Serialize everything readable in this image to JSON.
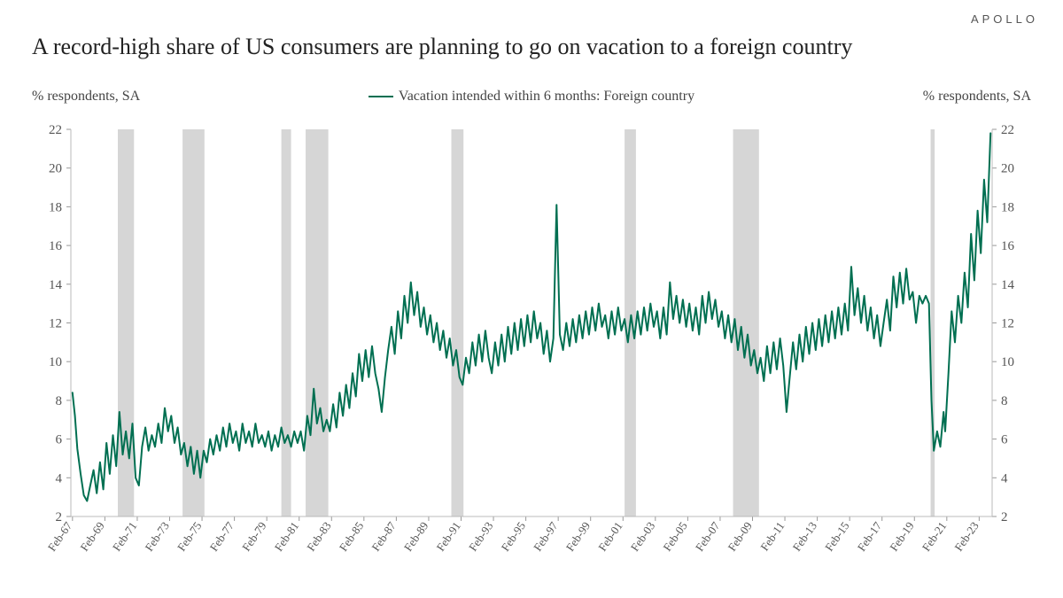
{
  "brand": "APOLLO",
  "title": "A record-high share of US consumers are planning to go on vacation to a foreign country",
  "axis_title_left": "% respondents, SA",
  "axis_title_right": "% respondents, SA",
  "legend_label": "Vacation intended within 6 months: Foreign country",
  "chart": {
    "type": "line",
    "line_color": "#006f51",
    "line_width": 2,
    "background_color": "#ffffff",
    "recession_band_color": "#d6d6d6",
    "axis_text_color": "#555555",
    "tick_fontsize": 15,
    "xtick_fontsize": 13,
    "x_start_year": 1967,
    "x_end_year": 2023.9,
    "ylim": [
      2,
      22
    ],
    "ytick_step": 2,
    "yticks": [
      2,
      4,
      6,
      8,
      10,
      12,
      14,
      16,
      18,
      20,
      22
    ],
    "x_tick_years": [
      1967,
      1969,
      1971,
      1973,
      1975,
      1977,
      1979,
      1981,
      1983,
      1985,
      1987,
      1989,
      1991,
      1993,
      1995,
      1997,
      1999,
      2001,
      2003,
      2005,
      2007,
      2009,
      2011,
      2013,
      2015,
      2017,
      2019,
      2021,
      2023
    ],
    "x_tick_prefix": "Feb-",
    "recession_bands": [
      [
        1969.9,
        1970.9
      ],
      [
        1973.9,
        1975.25
      ],
      [
        1980.0,
        1980.6
      ],
      [
        1981.5,
        1982.9
      ],
      [
        1990.5,
        1991.25
      ],
      [
        2001.2,
        2001.9
      ],
      [
        2007.9,
        2009.5
      ],
      [
        2020.1,
        2020.35
      ]
    ],
    "series": [
      [
        1967.1,
        8.4
      ],
      [
        1967.25,
        7.2
      ],
      [
        1967.4,
        5.5
      ],
      [
        1967.6,
        4.2
      ],
      [
        1967.8,
        3.1
      ],
      [
        1968.0,
        2.8
      ],
      [
        1968.2,
        3.6
      ],
      [
        1968.4,
        4.4
      ],
      [
        1968.6,
        3.2
      ],
      [
        1968.8,
        4.8
      ],
      [
        1969.0,
        3.4
      ],
      [
        1969.2,
        5.8
      ],
      [
        1969.4,
        4.2
      ],
      [
        1969.6,
        6.2
      ],
      [
        1969.8,
        4.6
      ],
      [
        1970.0,
        7.4
      ],
      [
        1970.2,
        5.2
      ],
      [
        1970.4,
        6.4
      ],
      [
        1970.6,
        5.0
      ],
      [
        1970.8,
        6.8
      ],
      [
        1971.0,
        4.0
      ],
      [
        1971.2,
        3.6
      ],
      [
        1971.4,
        5.6
      ],
      [
        1971.6,
        6.6
      ],
      [
        1971.8,
        5.4
      ],
      [
        1972.0,
        6.2
      ],
      [
        1972.2,
        5.6
      ],
      [
        1972.4,
        6.8
      ],
      [
        1972.6,
        5.8
      ],
      [
        1972.8,
        7.6
      ],
      [
        1973.0,
        6.4
      ],
      [
        1973.2,
        7.2
      ],
      [
        1973.4,
        5.8
      ],
      [
        1973.6,
        6.6
      ],
      [
        1973.8,
        5.2
      ],
      [
        1974.0,
        5.8
      ],
      [
        1974.2,
        4.6
      ],
      [
        1974.4,
        5.6
      ],
      [
        1974.6,
        4.2
      ],
      [
        1974.8,
        5.4
      ],
      [
        1975.0,
        4.0
      ],
      [
        1975.2,
        5.4
      ],
      [
        1975.4,
        4.8
      ],
      [
        1975.6,
        6.0
      ],
      [
        1975.8,
        5.2
      ],
      [
        1976.0,
        6.2
      ],
      [
        1976.2,
        5.4
      ],
      [
        1976.4,
        6.6
      ],
      [
        1976.6,
        5.6
      ],
      [
        1976.8,
        6.8
      ],
      [
        1977.0,
        5.8
      ],
      [
        1977.2,
        6.4
      ],
      [
        1977.4,
        5.4
      ],
      [
        1977.6,
        6.8
      ],
      [
        1977.8,
        5.8
      ],
      [
        1978.0,
        6.4
      ],
      [
        1978.2,
        5.6
      ],
      [
        1978.4,
        6.8
      ],
      [
        1978.6,
        5.8
      ],
      [
        1978.8,
        6.2
      ],
      [
        1979.0,
        5.6
      ],
      [
        1979.2,
        6.4
      ],
      [
        1979.4,
        5.4
      ],
      [
        1979.6,
        6.2
      ],
      [
        1979.8,
        5.6
      ],
      [
        1980.0,
        6.6
      ],
      [
        1980.2,
        5.8
      ],
      [
        1980.4,
        6.2
      ],
      [
        1980.6,
        5.6
      ],
      [
        1980.8,
        6.4
      ],
      [
        1981.0,
        5.8
      ],
      [
        1981.2,
        6.4
      ],
      [
        1981.4,
        5.4
      ],
      [
        1981.6,
        7.2
      ],
      [
        1981.8,
        6.2
      ],
      [
        1982.0,
        8.6
      ],
      [
        1982.2,
        6.8
      ],
      [
        1982.4,
        7.6
      ],
      [
        1982.6,
        6.4
      ],
      [
        1982.8,
        7.0
      ],
      [
        1983.0,
        6.4
      ],
      [
        1983.2,
        7.8
      ],
      [
        1983.4,
        6.6
      ],
      [
        1983.6,
        8.4
      ],
      [
        1983.8,
        7.2
      ],
      [
        1984.0,
        8.8
      ],
      [
        1984.2,
        7.6
      ],
      [
        1984.4,
        9.4
      ],
      [
        1984.6,
        8.2
      ],
      [
        1984.8,
        10.4
      ],
      [
        1985.0,
        9.0
      ],
      [
        1985.2,
        10.6
      ],
      [
        1985.4,
        9.2
      ],
      [
        1985.6,
        10.8
      ],
      [
        1985.8,
        9.4
      ],
      [
        1986.0,
        8.6
      ],
      [
        1986.2,
        7.4
      ],
      [
        1986.4,
        9.2
      ],
      [
        1986.6,
        10.6
      ],
      [
        1986.8,
        11.8
      ],
      [
        1987.0,
        10.4
      ],
      [
        1987.2,
        12.6
      ],
      [
        1987.4,
        11.2
      ],
      [
        1987.6,
        13.4
      ],
      [
        1987.8,
        12.0
      ],
      [
        1988.0,
        14.1
      ],
      [
        1988.2,
        12.4
      ],
      [
        1988.4,
        13.6
      ],
      [
        1988.6,
        11.8
      ],
      [
        1988.8,
        12.8
      ],
      [
        1989.0,
        11.4
      ],
      [
        1989.2,
        12.4
      ],
      [
        1989.4,
        11.0
      ],
      [
        1989.6,
        12.0
      ],
      [
        1989.8,
        10.6
      ],
      [
        1990.0,
        11.6
      ],
      [
        1990.2,
        10.2
      ],
      [
        1990.4,
        11.2
      ],
      [
        1990.6,
        9.8
      ],
      [
        1990.8,
        10.6
      ],
      [
        1991.0,
        9.2
      ],
      [
        1991.2,
        8.8
      ],
      [
        1991.4,
        10.2
      ],
      [
        1991.6,
        9.4
      ],
      [
        1991.8,
        11.0
      ],
      [
        1992.0,
        9.8
      ],
      [
        1992.2,
        11.4
      ],
      [
        1992.4,
        10.0
      ],
      [
        1992.6,
        11.6
      ],
      [
        1992.8,
        10.2
      ],
      [
        1993.0,
        9.4
      ],
      [
        1993.2,
        11.0
      ],
      [
        1993.4,
        9.8
      ],
      [
        1993.6,
        11.4
      ],
      [
        1993.8,
        10.0
      ],
      [
        1994.0,
        11.8
      ],
      [
        1994.2,
        10.4
      ],
      [
        1994.4,
        12.0
      ],
      [
        1994.6,
        10.6
      ],
      [
        1994.8,
        12.2
      ],
      [
        1995.0,
        10.8
      ],
      [
        1995.2,
        12.4
      ],
      [
        1995.4,
        11.0
      ],
      [
        1995.6,
        12.6
      ],
      [
        1995.8,
        11.2
      ],
      [
        1996.0,
        12.0
      ],
      [
        1996.2,
        10.4
      ],
      [
        1996.4,
        11.6
      ],
      [
        1996.6,
        10.0
      ],
      [
        1996.8,
        11.2
      ],
      [
        1997.0,
        18.1
      ],
      [
        1997.2,
        11.4
      ],
      [
        1997.4,
        10.6
      ],
      [
        1997.6,
        12.0
      ],
      [
        1997.8,
        10.8
      ],
      [
        1998.0,
        12.2
      ],
      [
        1998.2,
        11.0
      ],
      [
        1998.4,
        12.4
      ],
      [
        1998.6,
        11.2
      ],
      [
        1998.8,
        12.6
      ],
      [
        1999.0,
        11.4
      ],
      [
        1999.2,
        12.8
      ],
      [
        1999.4,
        11.6
      ],
      [
        1999.6,
        13.0
      ],
      [
        1999.8,
        11.8
      ],
      [
        2000.0,
        12.4
      ],
      [
        2000.2,
        11.2
      ],
      [
        2000.4,
        12.6
      ],
      [
        2000.6,
        11.4
      ],
      [
        2000.8,
        12.8
      ],
      [
        2001.0,
        11.6
      ],
      [
        2001.2,
        12.2
      ],
      [
        2001.4,
        11.0
      ],
      [
        2001.6,
        12.4
      ],
      [
        2001.8,
        11.2
      ],
      [
        2002.0,
        12.6
      ],
      [
        2002.2,
        11.4
      ],
      [
        2002.4,
        12.8
      ],
      [
        2002.6,
        11.6
      ],
      [
        2002.8,
        13.0
      ],
      [
        2003.0,
        11.8
      ],
      [
        2003.2,
        12.6
      ],
      [
        2003.4,
        11.2
      ],
      [
        2003.6,
        12.8
      ],
      [
        2003.8,
        11.4
      ],
      [
        2004.0,
        14.1
      ],
      [
        2004.2,
        12.2
      ],
      [
        2004.4,
        13.4
      ],
      [
        2004.6,
        12.0
      ],
      [
        2004.8,
        13.2
      ],
      [
        2005.0,
        11.8
      ],
      [
        2005.2,
        13.0
      ],
      [
        2005.4,
        11.6
      ],
      [
        2005.6,
        12.8
      ],
      [
        2005.8,
        11.4
      ],
      [
        2006.0,
        13.4
      ],
      [
        2006.2,
        12.0
      ],
      [
        2006.4,
        13.6
      ],
      [
        2006.6,
        12.2
      ],
      [
        2006.8,
        13.2
      ],
      [
        2007.0,
        11.8
      ],
      [
        2007.2,
        12.6
      ],
      [
        2007.4,
        11.2
      ],
      [
        2007.6,
        12.4
      ],
      [
        2007.8,
        11.0
      ],
      [
        2008.0,
        12.2
      ],
      [
        2008.2,
        10.6
      ],
      [
        2008.4,
        11.8
      ],
      [
        2008.6,
        10.2
      ],
      [
        2008.8,
        11.4
      ],
      [
        2009.0,
        9.8
      ],
      [
        2009.2,
        10.6
      ],
      [
        2009.4,
        9.4
      ],
      [
        2009.6,
        10.2
      ],
      [
        2009.8,
        9.0
      ],
      [
        2010.0,
        10.8
      ],
      [
        2010.2,
        9.4
      ],
      [
        2010.4,
        11.0
      ],
      [
        2010.6,
        9.6
      ],
      [
        2010.8,
        11.2
      ],
      [
        2011.0,
        9.8
      ],
      [
        2011.2,
        7.4
      ],
      [
        2011.4,
        9.2
      ],
      [
        2011.6,
        11.0
      ],
      [
        2011.8,
        9.6
      ],
      [
        2012.0,
        11.4
      ],
      [
        2012.2,
        10.0
      ],
      [
        2012.4,
        11.8
      ],
      [
        2012.6,
        10.4
      ],
      [
        2012.8,
        12.0
      ],
      [
        2013.0,
        10.6
      ],
      [
        2013.2,
        12.2
      ],
      [
        2013.4,
        10.8
      ],
      [
        2013.6,
        12.4
      ],
      [
        2013.8,
        11.0
      ],
      [
        2014.0,
        12.6
      ],
      [
        2014.2,
        11.2
      ],
      [
        2014.4,
        12.8
      ],
      [
        2014.6,
        11.4
      ],
      [
        2014.8,
        13.0
      ],
      [
        2015.0,
        11.6
      ],
      [
        2015.2,
        14.9
      ],
      [
        2015.4,
        12.4
      ],
      [
        2015.6,
        13.8
      ],
      [
        2015.8,
        12.0
      ],
      [
        2016.0,
        13.4
      ],
      [
        2016.2,
        11.6
      ],
      [
        2016.4,
        12.8
      ],
      [
        2016.6,
        11.2
      ],
      [
        2016.8,
        12.4
      ],
      [
        2017.0,
        10.8
      ],
      [
        2017.2,
        12.0
      ],
      [
        2017.4,
        13.2
      ],
      [
        2017.6,
        11.6
      ],
      [
        2017.8,
        14.4
      ],
      [
        2018.0,
        12.8
      ],
      [
        2018.2,
        14.6
      ],
      [
        2018.4,
        13.0
      ],
      [
        2018.6,
        14.8
      ],
      [
        2018.8,
        13.2
      ],
      [
        2019.0,
        13.6
      ],
      [
        2019.2,
        12.0
      ],
      [
        2019.4,
        13.4
      ],
      [
        2019.6,
        13.0
      ],
      [
        2019.8,
        13.4
      ],
      [
        2020.0,
        13.0
      ],
      [
        2020.15,
        8.0
      ],
      [
        2020.3,
        5.4
      ],
      [
        2020.5,
        6.4
      ],
      [
        2020.7,
        5.6
      ],
      [
        2020.9,
        7.4
      ],
      [
        2021.0,
        6.4
      ],
      [
        2021.2,
        9.4
      ],
      [
        2021.4,
        12.6
      ],
      [
        2021.6,
        11.0
      ],
      [
        2021.8,
        13.4
      ],
      [
        2022.0,
        12.0
      ],
      [
        2022.2,
        14.6
      ],
      [
        2022.4,
        12.8
      ],
      [
        2022.6,
        16.6
      ],
      [
        2022.8,
        14.2
      ],
      [
        2023.0,
        17.8
      ],
      [
        2023.2,
        15.6
      ],
      [
        2023.4,
        19.4
      ],
      [
        2023.6,
        17.2
      ],
      [
        2023.8,
        21.8
      ]
    ]
  }
}
